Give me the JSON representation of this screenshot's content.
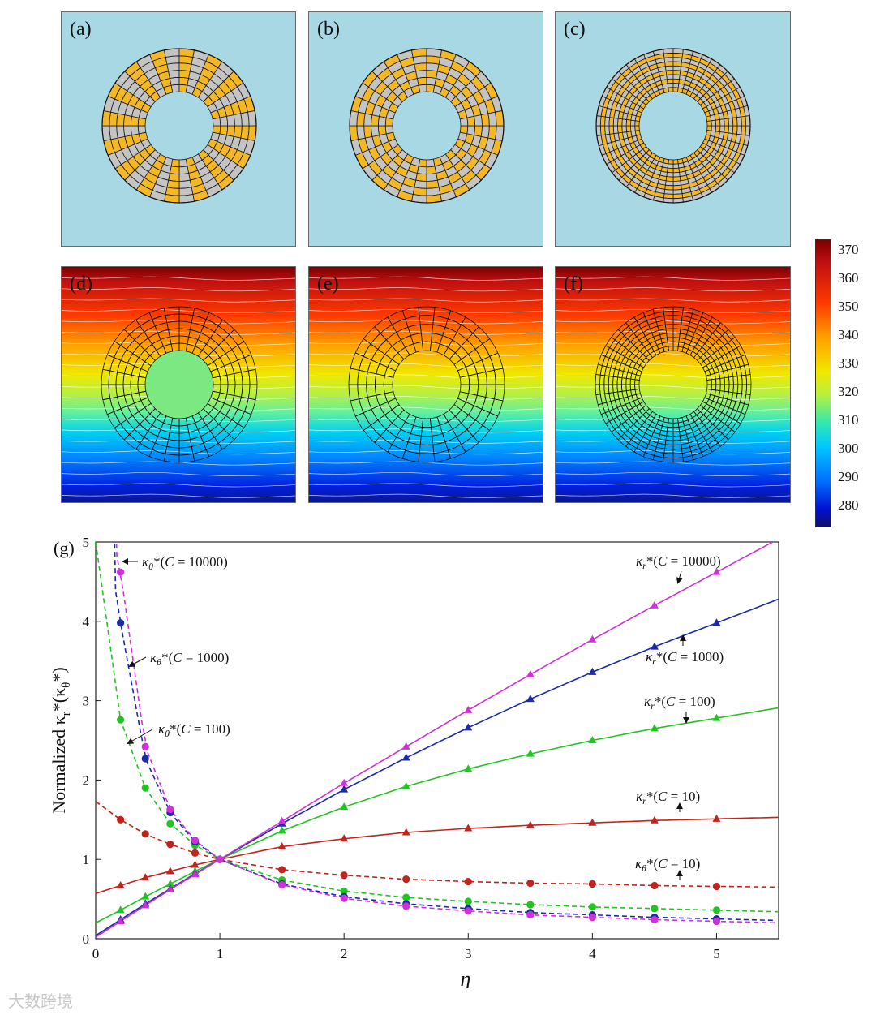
{
  "panels": {
    "a": {
      "label": "(a)"
    },
    "b": {
      "label": "(b)"
    },
    "c": {
      "label": "(c)"
    },
    "d": {
      "label": "(d)"
    },
    "e": {
      "label": "(e)"
    },
    "f": {
      "label": "(f)"
    }
  },
  "colors": {
    "background": "#a8d8e4",
    "material_a": "#f4b826",
    "material_b": "#c4c4c4",
    "c10": "#c0241c",
    "c100": "#22c422",
    "c1000": "#1a2aa8",
    "c10000": "#d030d8"
  },
  "colorbar": {
    "ticks": [
      "370",
      "360",
      "350",
      "340",
      "330",
      "320",
      "310",
      "300",
      "290",
      "280"
    ],
    "min": 272,
    "max": 373
  },
  "watermark": "大数跨境",
  "chart_data": {
    "type": "line",
    "panel_label": "(g)",
    "xlabel": "η",
    "ylabel": "Normalized κ",
    "ylabel_sub": "r",
    "ylabel_mid": "*(κ",
    "ylabel_sub2": "θ",
    "ylabel_end": "*)",
    "xlim": [
      0,
      5.5
    ],
    "ylim": [
      0,
      5
    ],
    "xticks": [
      "0",
      "1",
      "2",
      "3",
      "4",
      "5"
    ],
    "yticks": [
      "0",
      "1",
      "2",
      "3",
      "4",
      "5"
    ],
    "eta_points": [
      0.2,
      0.4,
      0.6,
      0.8,
      1.0,
      1.5,
      2.0,
      2.5,
      3.0,
      3.5,
      4.0,
      4.5,
      5.0
    ],
    "series": [
      {
        "name": "κr*(C=10)",
        "kind": "kr",
        "C": "10",
        "color": "#c0241c",
        "values": [
          0.67,
          0.77,
          0.85,
          0.93,
          1.0,
          1.16,
          1.26,
          1.34,
          1.39,
          1.43,
          1.46,
          1.49,
          1.51
        ]
      },
      {
        "name": "κr*(C=100)",
        "kind": "kr",
        "C": "100",
        "color": "#22c422",
        "values": [
          0.36,
          0.53,
          0.69,
          0.85,
          1.0,
          1.36,
          1.66,
          1.92,
          2.14,
          2.33,
          2.5,
          2.65,
          2.78
        ]
      },
      {
        "name": "κr*(C=1000)",
        "kind": "kr",
        "C": "1000",
        "color": "#1a2aa8",
        "values": [
          0.24,
          0.44,
          0.63,
          0.82,
          1.0,
          1.45,
          1.88,
          2.28,
          2.66,
          3.02,
          3.36,
          3.68,
          3.98
        ]
      },
      {
        "name": "κr*(C=10000)",
        "kind": "kr",
        "C": "10000",
        "color": "#d030d8",
        "values": [
          0.22,
          0.42,
          0.62,
          0.81,
          1.0,
          1.48,
          1.96,
          2.42,
          2.88,
          3.33,
          3.77,
          4.2,
          4.62
        ]
      },
      {
        "name": "κθ*(C=10)",
        "kind": "kt",
        "C": "10",
        "color": "#c0241c",
        "values": [
          1.5,
          1.32,
          1.19,
          1.08,
          1.0,
          0.87,
          0.8,
          0.75,
          0.72,
          0.7,
          0.69,
          0.67,
          0.66
        ]
      },
      {
        "name": "κθ*(C=100)",
        "kind": "kt",
        "C": "100",
        "color": "#22c422",
        "values": [
          2.76,
          1.9,
          1.45,
          1.18,
          1.0,
          0.74,
          0.6,
          0.52,
          0.47,
          0.43,
          0.4,
          0.38,
          0.36
        ]
      },
      {
        "name": "κθ*(C=1000)",
        "kind": "kt",
        "C": "1000",
        "color": "#1a2aa8",
        "values": [
          3.98,
          2.27,
          1.59,
          1.22,
          1.0,
          0.69,
          0.53,
          0.44,
          0.38,
          0.33,
          0.3,
          0.27,
          0.25
        ]
      },
      {
        "name": "κθ*(C=10000)",
        "kind": "kt",
        "C": "10000",
        "color": "#d030d8",
        "values": [
          4.62,
          2.42,
          1.63,
          1.24,
          1.0,
          0.68,
          0.51,
          0.41,
          0.35,
          0.3,
          0.27,
          0.24,
          0.22
        ]
      }
    ],
    "annotations": [
      {
        "series": "κθ*(C=10000)",
        "kappa": "κ",
        "sub": "θ",
        "C": "10000"
      },
      {
        "series": "κθ*(C=1000)",
        "kappa": "κ",
        "sub": "θ",
        "C": "1000"
      },
      {
        "series": "κθ*(C=100)",
        "kappa": "κ",
        "sub": "θ",
        "C": "100"
      },
      {
        "series": "κr*(C=10000)",
        "kappa": "κ",
        "sub": "r",
        "C": "10000"
      },
      {
        "series": "κr*(C=1000)",
        "kappa": "κ",
        "sub": "r",
        "C": "1000"
      },
      {
        "series": "κr*(C=100)",
        "kappa": "κ",
        "sub": "r",
        "C": "100"
      },
      {
        "series": "κr*(C=10)",
        "kappa": "κ",
        "sub": "r",
        "C": "10"
      },
      {
        "series": "κθ*(C=10)",
        "kappa": "κ",
        "sub": "θ",
        "C": "10"
      }
    ]
  }
}
